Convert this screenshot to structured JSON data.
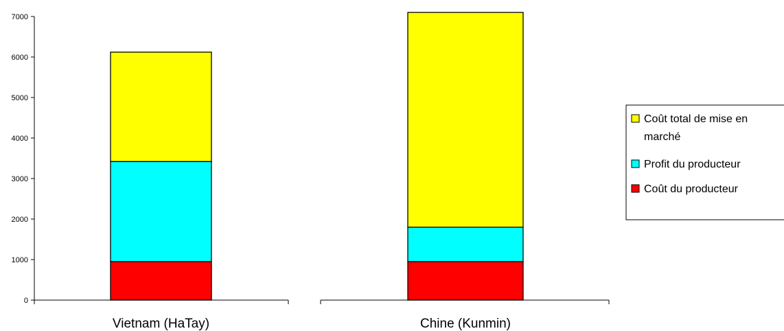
{
  "chart_data": {
    "type": "bar",
    "stacked": true,
    "categories": [
      "Vietnam (HaTay)",
      "Chine (Kunmin)"
    ],
    "series": [
      {
        "name": "Coût du producteur",
        "color": "#ff0000",
        "values": [
          950,
          950
        ]
      },
      {
        "name": "Profit du producteur",
        "color": "#00ffff",
        "values": [
          2470,
          850
        ]
      },
      {
        "name": "Coût total de mise en marché",
        "color": "#ffff00",
        "values": [
          2700,
          5300
        ]
      }
    ],
    "title": "",
    "xlabel": "",
    "ylabel": "",
    "ylim": [
      0,
      7000
    ],
    "yticks": [
      0,
      1000,
      2000,
      3000,
      4000,
      5000,
      6000,
      7000
    ],
    "grid": false,
    "legend_position": "right",
    "legend_entries": [
      {
        "lines": [
          "Coût total de mise en",
          "marché"
        ],
        "color": "#ffff00"
      },
      {
        "lines": [
          "Profit du producteur"
        ],
        "color": "#00ffff"
      },
      {
        "lines": [
          "Coût du producteur"
        ],
        "color": "#ff0000"
      }
    ]
  }
}
